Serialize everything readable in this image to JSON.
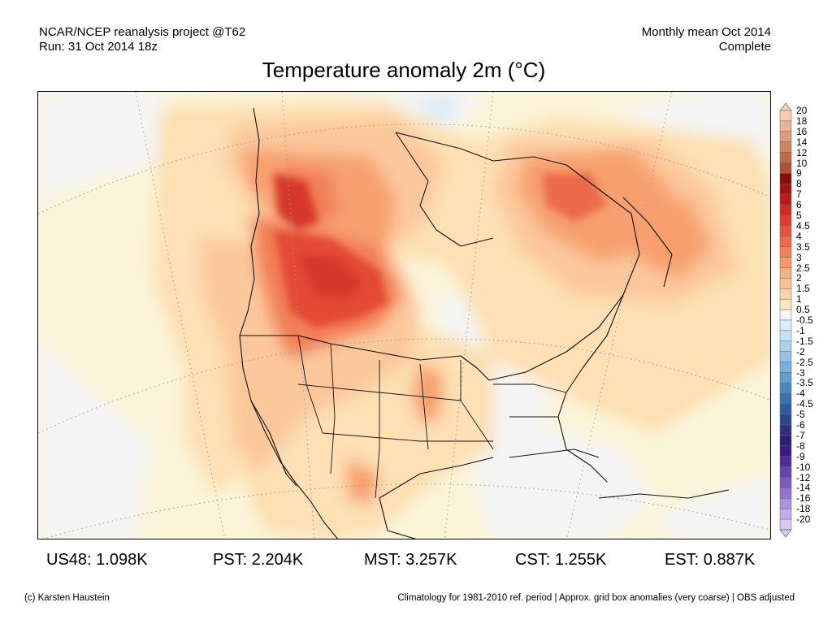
{
  "header": {
    "left_line1": "NCAR/NCEP reanalysis project @T62",
    "left_line2": "Run: 31 Oct 2014 18z",
    "right_line1": "Monthly mean Oct 2014",
    "right_line2": "Complete"
  },
  "title": "Temperature anomaly 2m (°C)",
  "colorbar": {
    "labels": [
      "20",
      "18",
      "16",
      "14",
      "12",
      "10",
      "9",
      "8",
      "7",
      "6",
      "5",
      "4.5",
      "4",
      "3.5",
      "3",
      "2.5",
      "2",
      "1.5",
      "1",
      "0.5",
      "-0.5",
      "-1",
      "-1.5",
      "-2",
      "-2.5",
      "-3",
      "-3.5",
      "-4",
      "-4.5",
      "-5",
      "-6",
      "-7",
      "-8",
      "-9",
      "-10",
      "-12",
      "-14",
      "-16",
      "-18",
      "-20"
    ],
    "colors": [
      "#f5cdb3",
      "#e9b596",
      "#dc9c7c",
      "#cd8462",
      "#bd6b4a",
      "#ac5235",
      "#8c0a0a",
      "#a51010",
      "#bd1a18",
      "#d22822",
      "#e23c2c",
      "#ea533a",
      "#f06a48",
      "#f4815a",
      "#f7996c",
      "#f9af80",
      "#fbc394",
      "#fcd6a9",
      "#fde6c0",
      "#f5f5f5",
      "#dcedf8",
      "#c6e2f3",
      "#acd3ec",
      "#93c3e3",
      "#79b1d9",
      "#5f9ecd",
      "#4a88c0",
      "#3a72b0",
      "#2e5ca0",
      "#294590",
      "#2d2f80",
      "#311c74",
      "#3a1a7e",
      "#4f2c96",
      "#6642ad",
      "#7d5ac0",
      "#9474d0",
      "#ab90de",
      "#c2ade9",
      "#d8c9f2"
    ]
  },
  "stats": [
    {
      "label": "US48: 1.098K"
    },
    {
      "label": "PST: 2.204K"
    },
    {
      "label": "MST: 3.257K"
    },
    {
      "label": "CST: 1.255K"
    },
    {
      "label": "EST: 0.887K"
    }
  ],
  "footer": {
    "left": "(c) Karsten Haustein",
    "right": "Climatology for 1981-2010 ref. period | Approx. grid box anomalies (very coarse) | OBS adjusted"
  }
}
